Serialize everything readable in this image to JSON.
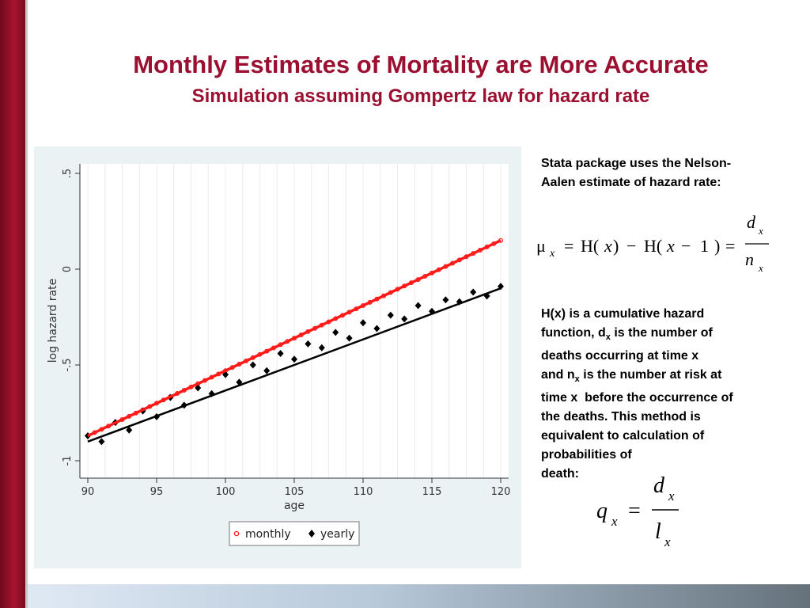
{
  "slide": {
    "title": "Monthly Estimates of Mortality are More Accurate",
    "subtitle": "Simulation assuming Gompertz law for hazard rate"
  },
  "notes": {
    "nelson_line1": "Stata package uses the Nelson-",
    "nelson_line2": "Aalen estimate of hazard rate:",
    "hazard_line1": "H(x) is a cumulative hazard",
    "hazard_line2_pre": "function, d",
    "hazard_line2_sub": "x",
    "hazard_line2_post": " is the number of",
    "hazard_line3": "deaths occurring at time x",
    "hazard_line4_pre": "and n",
    "hazard_line4_sub": "x",
    "hazard_line4_post": " is the number at risk at",
    "hazard_line5": "time x  before the occurrence of",
    "hazard_line6": "the deaths. This method is",
    "hazard_line7": "equivalent to calculation of",
    "hazard_line8": "probabilities of",
    "hazard_line9": "death:"
  },
  "formula1": {
    "mu": "μ",
    "mu_sub": "x",
    "eq1": "=",
    "H1": "H(",
    "x1": "x",
    "close1": ")",
    "minus1": "−",
    "H2": "H(",
    "x2": "x",
    "minus2": "−",
    "one": "1",
    "close2": ")",
    "eq2": "=",
    "num": "d",
    "num_sub": "x",
    "den": "n",
    "den_sub": "x"
  },
  "formula2": {
    "q": "q",
    "q_sub": "x",
    "eq": "=",
    "num": "d",
    "num_sub": "x",
    "den": "l",
    "den_sub": "x"
  },
  "colors": {
    "accent": "#9b1030",
    "monthly": "#ff1a1a",
    "yearly": "#000000",
    "chart_background": "#eaf2f3"
  },
  "chart_data": {
    "type": "scatter",
    "xlabel": "age",
    "ylabel": "log hazard rate",
    "xlim": [
      90,
      120
    ],
    "ylim": [
      -1,
      0.5
    ],
    "x_ticks": [
      90,
      95,
      100,
      105,
      110,
      115,
      120
    ],
    "x_tick_labels": [
      "90",
      "95",
      "100",
      "105",
      "110",
      "115",
      "120"
    ],
    "y_ticks": [
      -1,
      -0.5,
      0,
      0.5
    ],
    "y_tick_labels": [
      "-1",
      "-.5",
      "0",
      ".5"
    ],
    "grid": true,
    "legend_position": "bottom",
    "legend": [
      "monthly",
      "yearly"
    ],
    "series": [
      {
        "name": "monthly",
        "marker": "circle",
        "color": "#ff1a1a",
        "x": [
          90.0,
          90.5,
          91.0,
          91.5,
          92.0,
          92.5,
          93.0,
          93.5,
          94.0,
          94.5,
          95.0,
          95.5,
          96.0,
          96.5,
          97.0,
          97.5,
          98.0,
          98.5,
          99.0,
          99.5,
          100.0,
          100.5,
          101.0,
          101.5,
          102.0,
          102.5,
          103.0,
          103.5,
          104.0,
          104.5,
          105.0,
          105.5,
          106.0,
          106.5,
          107.0,
          107.5,
          108.0,
          108.5,
          109.0,
          109.5,
          110.0,
          110.5,
          111.0,
          111.5,
          112.0,
          112.5,
          113.0,
          113.5,
          114.0,
          114.5,
          115.0,
          115.5,
          116.0,
          116.5,
          117.0,
          117.5,
          118.0,
          118.5,
          119.0,
          119.5,
          120.0
        ],
        "y": [
          -0.87,
          -0.853,
          -0.836,
          -0.819,
          -0.802,
          -0.785,
          -0.768,
          -0.751,
          -0.734,
          -0.717,
          -0.7,
          -0.683,
          -0.666,
          -0.649,
          -0.632,
          -0.615,
          -0.598,
          -0.581,
          -0.564,
          -0.547,
          -0.53,
          -0.513,
          -0.496,
          -0.479,
          -0.462,
          -0.445,
          -0.428,
          -0.411,
          -0.394,
          -0.377,
          -0.36,
          -0.343,
          -0.326,
          -0.309,
          -0.292,
          -0.275,
          -0.258,
          -0.241,
          -0.224,
          -0.207,
          -0.19,
          -0.173,
          -0.156,
          -0.139,
          -0.122,
          -0.105,
          -0.088,
          -0.071,
          -0.054,
          -0.037,
          -0.02,
          -0.003,
          0.014,
          0.031,
          0.048,
          0.065,
          0.082,
          0.099,
          0.116,
          0.133,
          0.15
        ]
      },
      {
        "name": "yearly",
        "marker": "diamond",
        "color": "#000000",
        "x": [
          90,
          91,
          92,
          93,
          94,
          95,
          96,
          97,
          98,
          99,
          100,
          101,
          102,
          103,
          104,
          105,
          106,
          107,
          108,
          109,
          110,
          111,
          112,
          113,
          114,
          115,
          116,
          117,
          118,
          119,
          120
        ],
        "y": [
          -0.87,
          -0.9,
          -0.8,
          -0.84,
          -0.74,
          -0.77,
          -0.67,
          -0.71,
          -0.62,
          -0.65,
          -0.55,
          -0.59,
          -0.5,
          -0.53,
          -0.44,
          -0.47,
          -0.39,
          -0.41,
          -0.33,
          -0.36,
          -0.28,
          -0.31,
          -0.24,
          -0.26,
          -0.19,
          -0.22,
          -0.16,
          -0.17,
          -0.12,
          -0.14,
          -0.09
        ]
      }
    ],
    "fit_lines": [
      {
        "series": "monthly",
        "color": "#ff1a1a",
        "x": [
          90,
          120
        ],
        "y": [
          -0.87,
          0.15
        ]
      },
      {
        "series": "yearly",
        "color": "#000000",
        "x": [
          90,
          120
        ],
        "y": [
          -0.9,
          -0.1
        ]
      }
    ]
  }
}
